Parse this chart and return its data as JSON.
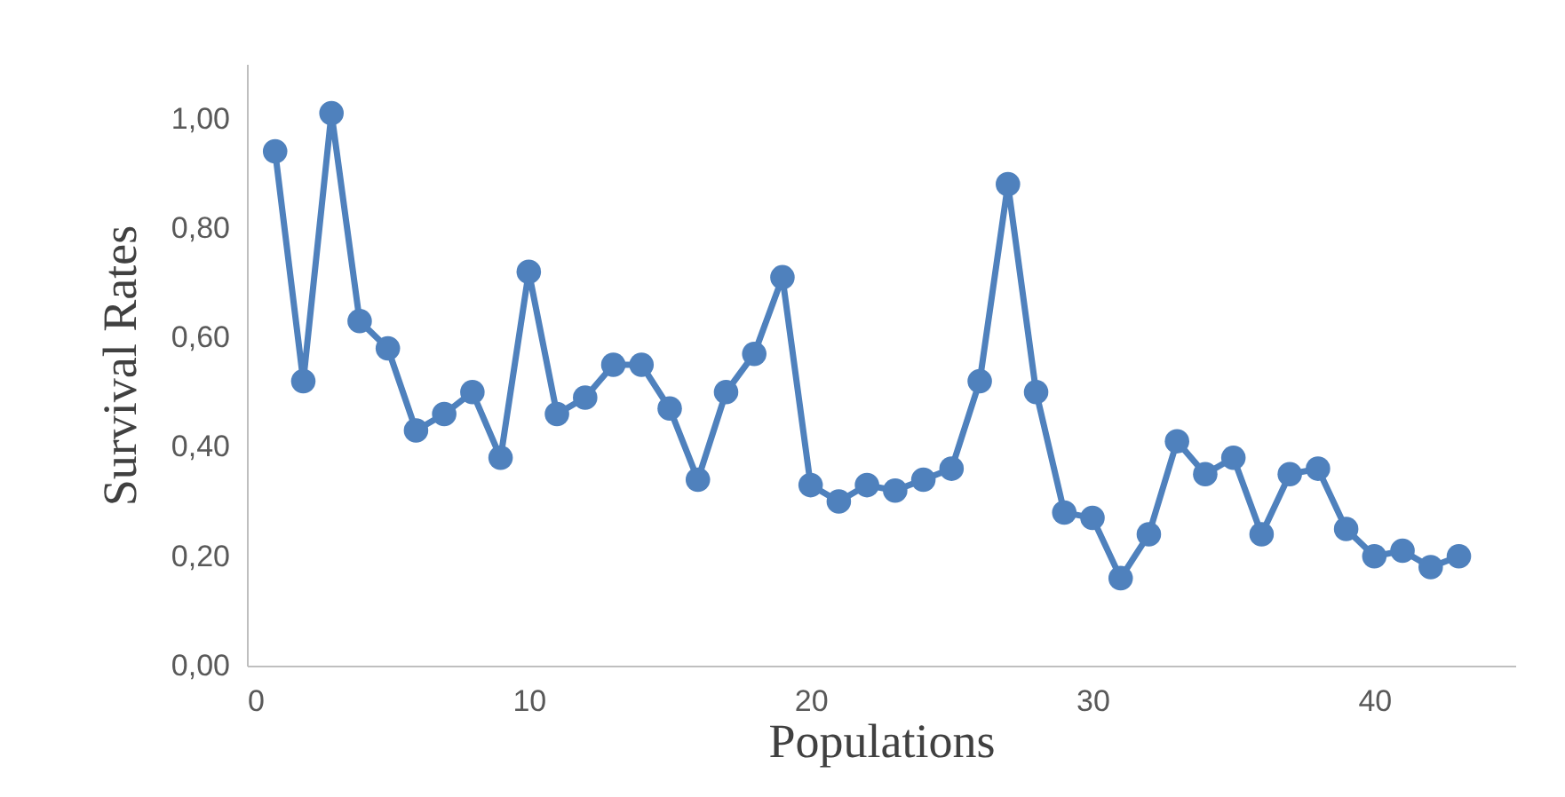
{
  "chart_data": {
    "type": "line",
    "xlabel": "Populations",
    "ylabel": "Survival Rates",
    "x": [
      1,
      2,
      3,
      4,
      5,
      6,
      7,
      8,
      9,
      10,
      11,
      12,
      13,
      14,
      15,
      16,
      17,
      18,
      19,
      20,
      21,
      22,
      23,
      24,
      25,
      26,
      27,
      28,
      29,
      30,
      31,
      32,
      33,
      34,
      35,
      36,
      37,
      38,
      39,
      40,
      41,
      42,
      43
    ],
    "series": [
      {
        "color": "#4f81bd",
        "values": [
          0.94,
          0.52,
          1.01,
          0.63,
          0.58,
          0.43,
          0.46,
          0.5,
          0.38,
          0.72,
          0.46,
          0.49,
          0.55,
          0.55,
          0.47,
          0.34,
          0.5,
          0.57,
          0.71,
          0.33,
          0.3,
          0.33,
          0.32,
          0.34,
          0.36,
          0.52,
          0.88,
          0.5,
          0.28,
          0.27,
          0.16,
          0.24,
          0.41,
          0.35,
          0.38,
          0.24,
          0.35,
          0.36,
          0.25,
          0.2,
          0.21,
          0.18,
          0.2
        ]
      }
    ],
    "xlim": [
      0,
      45
    ],
    "xticks": [
      0,
      10,
      20,
      30,
      40
    ],
    "ylim": [
      0,
      1.1
    ],
    "yticks": [
      {
        "value": 0,
        "label": "0,00"
      },
      {
        "value": 0.2,
        "label": "0,20"
      },
      {
        "value": 0.4,
        "label": "0,40"
      },
      {
        "value": 0.6,
        "label": "0,60"
      },
      {
        "value": 0.8,
        "label": "0,80"
      },
      {
        "value": 1.0,
        "label": "1,00"
      }
    ],
    "grid": false,
    "marker": "circle",
    "line_style": "solid"
  }
}
